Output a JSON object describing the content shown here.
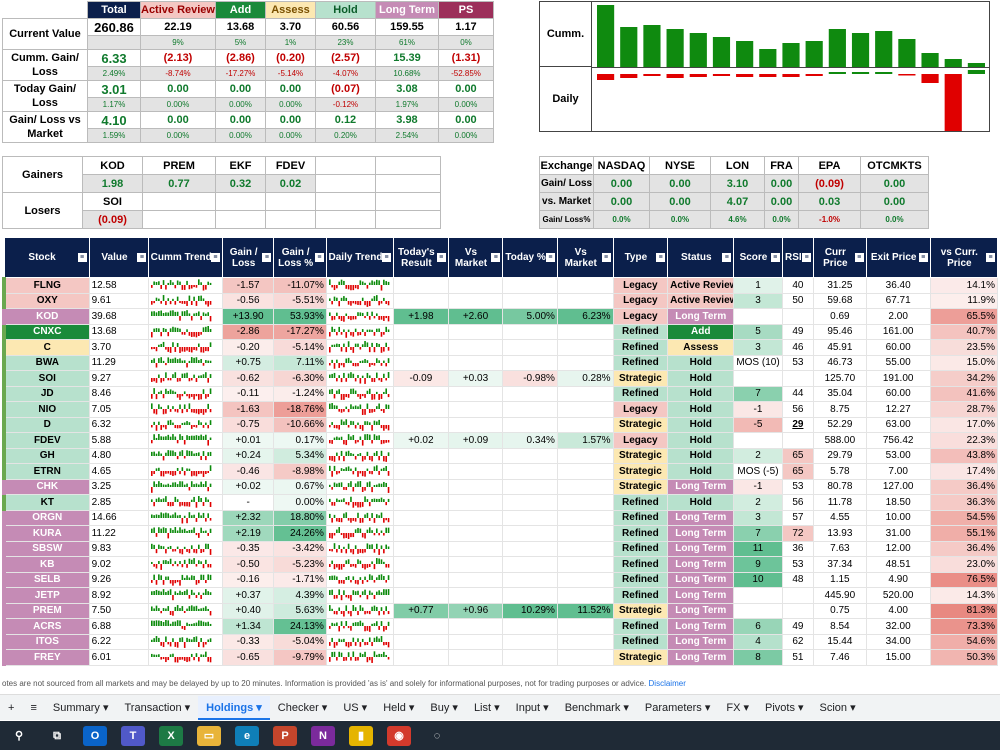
{
  "summary": {
    "headers": [
      {
        "label": "Total",
        "bg": "#0b1f4b",
        "fg": "#ffffff"
      },
      {
        "label": "Active Review",
        "bg": "#f4c7c3",
        "fg": "#990000"
      },
      {
        "label": "Add",
        "bg": "#1a8a3a",
        "fg": "#ffffff"
      },
      {
        "label": "Assess",
        "bg": "#fce8b2",
        "fg": "#7a5000"
      },
      {
        "label": "Hold",
        "bg": "#b7e1cd",
        "fg": "#0b5d2a"
      },
      {
        "label": "Long Term",
        "bg": "#c58bb5",
        "fg": "#ffffff"
      },
      {
        "label": "PS",
        "bg": "#9c2f5a",
        "fg": "#ffffff"
      }
    ],
    "rows": [
      {
        "label": "Current Value",
        "values": [
          "260.86",
          "22.19",
          "13.68",
          "3.70",
          "60.56",
          "159.55",
          "1.17"
        ],
        "pcts": [
          "",
          "9%",
          "5%",
          "1%",
          "23%",
          "61%",
          "0%"
        ],
        "valcls": [
          "",
          "",
          "",
          "",
          "",
          "",
          ""
        ],
        "pctcls": [
          "",
          "g",
          "g",
          "g",
          "g",
          "g",
          "g"
        ]
      },
      {
        "label": "Cumm. Gain/ Loss",
        "values": [
          "6.33",
          "(2.13)",
          "(2.86)",
          "(0.20)",
          "(2.57)",
          "15.39",
          "(1.31)"
        ],
        "pcts": [
          "2.49%",
          "-8.74%",
          "-17.27%",
          "-5.14%",
          "-4.07%",
          "10.68%",
          "-52.85%"
        ],
        "valcls": [
          "g",
          "r",
          "r",
          "r",
          "r",
          "g",
          "r"
        ],
        "pctcls": [
          "g",
          "r",
          "r",
          "r",
          "r",
          "g",
          "r"
        ]
      },
      {
        "label": "Today Gain/ Loss",
        "values": [
          "3.01",
          "0.00",
          "0.00",
          "0.00",
          "(0.07)",
          "3.08",
          "0.00"
        ],
        "pcts": [
          "1.17%",
          "0.00%",
          "0.00%",
          "0.00%",
          "-0.12%",
          "1.97%",
          "0.00%"
        ],
        "valcls": [
          "g",
          "g",
          "g",
          "g",
          "r",
          "g",
          "g"
        ],
        "pctcls": [
          "g",
          "g",
          "g",
          "g",
          "r",
          "g",
          "g"
        ]
      },
      {
        "label": "Gain/ Loss vs Market",
        "values": [
          "4.10",
          "0.00",
          "0.00",
          "0.00",
          "0.12",
          "3.98",
          "0.00"
        ],
        "pcts": [
          "1.59%",
          "0.00%",
          "0.00%",
          "0.00%",
          "0.20%",
          "2.54%",
          "0.00%"
        ],
        "valcls": [
          "g",
          "g",
          "g",
          "g",
          "g",
          "g",
          "g"
        ],
        "pctcls": [
          "g",
          "g",
          "g",
          "g",
          "g",
          "g",
          "g"
        ]
      }
    ]
  },
  "trend_panel": {
    "cumm_label": "Cumm.",
    "daily_label": "Daily",
    "cumm_bars": [
      62,
      40,
      42,
      38,
      34,
      30,
      26,
      18,
      24,
      26,
      38,
      34,
      36,
      28,
      14,
      8,
      4
    ],
    "daily_bars": [
      -6,
      -4,
      -2,
      -4,
      -3,
      -2,
      -3,
      -3,
      -3,
      -2,
      2,
      2,
      2,
      -1,
      -9,
      -58,
      4
    ]
  },
  "gainers_losers": {
    "gainers_label": "Gainers",
    "losers_label": "Losers",
    "gainers": [
      {
        "sym": "KOD",
        "val": "1.98"
      },
      {
        "sym": "PREM",
        "val": "0.77"
      },
      {
        "sym": "EKF",
        "val": "0.32"
      },
      {
        "sym": "FDEV",
        "val": "0.02"
      }
    ],
    "losers": [
      {
        "sym": "SOI",
        "val": "(0.09)"
      }
    ]
  },
  "exchange": {
    "headers": [
      "Exchange",
      "NASDAQ",
      "NYSE",
      "LON",
      "FRA",
      "EPA",
      "OTCMKTS"
    ],
    "rows": [
      {
        "label": "Gain/ Loss",
        "vals": [
          "0.00",
          "0.00",
          "3.10",
          "0.00",
          "(0.09)",
          "0.00"
        ],
        "cls": [
          "g",
          "g",
          "g",
          "g",
          "r",
          "g"
        ]
      },
      {
        "label": "vs. Market",
        "vals": [
          "0.00",
          "0.00",
          "4.07",
          "0.00",
          "0.03",
          "0.00"
        ],
        "cls": [
          "g",
          "g",
          "g",
          "g",
          "g",
          "g"
        ]
      },
      {
        "label": "Gain/ Loss%",
        "vals": [
          "0.0%",
          "0.0%",
          "4.6%",
          "0.0%",
          "-1.0%",
          "0.0%"
        ],
        "cls": [
          "g",
          "g",
          "g",
          "g",
          "r",
          "g"
        ]
      }
    ]
  },
  "holdings": {
    "headers": [
      "Stock",
      "Value",
      "Cumm Trend",
      "Gain / Loss",
      "Gain / Loss %",
      "Daily Trend",
      "Today's Result",
      "Vs Market",
      "Today %",
      "Vs Market",
      "Type",
      "Status",
      "Score",
      "RSI",
      "Curr Price",
      "Exit Price",
      "vs Curr. Price"
    ],
    "rows": [
      {
        "stock": "FLNG",
        "value": "12.58",
        "gl": "-1.57",
        "glp": "-11.07%",
        "tr": "",
        "vm": "",
        "tp": "",
        "vm2": "",
        "type": "Legacy",
        "status": "Active Review",
        "score": "1",
        "rsi": "40",
        "curr": "31.25",
        "exit": "36.40",
        "vsc": "14.1%"
      },
      {
        "stock": "OXY",
        "value": "9.61",
        "gl": "-0.56",
        "glp": "-5.51%",
        "tr": "",
        "vm": "",
        "tp": "",
        "vm2": "",
        "type": "Legacy",
        "status": "Active Review",
        "score": "3",
        "rsi": "50",
        "curr": "59.68",
        "exit": "67.71",
        "vsc": "11.9%"
      },
      {
        "stock": "KOD",
        "value": "39.68",
        "gl": "+13.90",
        "glp": "53.93%",
        "tr": "+1.98",
        "vm": "+2.60",
        "tp": "5.00%",
        "vm2": "6.23%",
        "type": "Legacy",
        "status": "Long Term",
        "score": "",
        "rsi": "",
        "curr": "0.69",
        "exit": "2.00",
        "vsc": "65.5%"
      },
      {
        "stock": "CNXC",
        "value": "13.68",
        "gl": "-2.86",
        "glp": "-17.27%",
        "tr": "",
        "vm": "",
        "tp": "",
        "vm2": "",
        "type": "Refined",
        "status": "Add",
        "score": "5",
        "rsi": "49",
        "curr": "95.46",
        "exit": "161.00",
        "vsc": "40.7%"
      },
      {
        "stock": "C",
        "value": "3.70",
        "gl": "-0.20",
        "glp": "-5.14%",
        "tr": "",
        "vm": "",
        "tp": "",
        "vm2": "",
        "type": "Refined",
        "status": "Assess",
        "score": "3",
        "rsi": "46",
        "curr": "45.91",
        "exit": "60.00",
        "vsc": "23.5%"
      },
      {
        "stock": "BWA",
        "value": "11.29",
        "gl": "+0.75",
        "glp": "7.11%",
        "tr": "",
        "vm": "",
        "tp": "",
        "vm2": "",
        "type": "Refined",
        "status": "Hold",
        "score": "MOS (10)",
        "rsi": "53",
        "curr": "46.73",
        "exit": "55.00",
        "vsc": "15.0%"
      },
      {
        "stock": "SOI",
        "value": "9.27",
        "gl": "-0.62",
        "glp": "-6.30%",
        "tr": "-0.09",
        "vm": "+0.03",
        "tp": "-0.98%",
        "vm2": "0.28%",
        "type": "Strategic",
        "status": "Hold",
        "score": "",
        "rsi": "",
        "curr": "125.70",
        "exit": "191.00",
        "vsc": "34.2%"
      },
      {
        "stock": "JD",
        "value": "8.46",
        "gl": "-0.11",
        "glp": "-1.24%",
        "tr": "",
        "vm": "",
        "tp": "",
        "vm2": "",
        "type": "Refined",
        "status": "Hold",
        "score": "7",
        "rsi": "44",
        "curr": "35.04",
        "exit": "60.00",
        "vsc": "41.6%"
      },
      {
        "stock": "NIO",
        "value": "7.05",
        "gl": "-1.63",
        "glp": "-18.76%",
        "tr": "",
        "vm": "",
        "tp": "",
        "vm2": "",
        "type": "Legacy",
        "status": "Hold",
        "score": "-1",
        "rsi": "56",
        "curr": "8.75",
        "exit": "12.27",
        "vsc": "28.7%"
      },
      {
        "stock": "D",
        "value": "6.32",
        "gl": "-0.75",
        "glp": "-10.66%",
        "tr": "",
        "vm": "",
        "tp": "",
        "vm2": "",
        "type": "Strategic",
        "status": "Hold",
        "score": "-5",
        "rsi": "29",
        "curr": "52.29",
        "exit": "63.00",
        "vsc": "17.0%"
      },
      {
        "stock": "FDEV",
        "value": "5.88",
        "gl": "+0.01",
        "glp": "0.17%",
        "tr": "+0.02",
        "vm": "+0.09",
        "tp": "0.34%",
        "vm2": "1.57%",
        "type": "Legacy",
        "status": "Hold",
        "score": "",
        "rsi": "",
        "curr": "588.00",
        "exit": "756.42",
        "vsc": "22.3%"
      },
      {
        "stock": "GH",
        "value": "4.80",
        "gl": "+0.24",
        "glp": "5.34%",
        "tr": "",
        "vm": "",
        "tp": "",
        "vm2": "",
        "type": "Strategic",
        "status": "Hold",
        "score": "2",
        "rsi": "65",
        "curr": "29.79",
        "exit": "53.00",
        "vsc": "43.8%"
      },
      {
        "stock": "ETRN",
        "value": "4.65",
        "gl": "-0.46",
        "glp": "-8.98%",
        "tr": "",
        "vm": "",
        "tp": "",
        "vm2": "",
        "type": "Strategic",
        "status": "Hold",
        "score": "MOS (-5)",
        "rsi": "65",
        "curr": "5.78",
        "exit": "7.00",
        "vsc": "17.4%"
      },
      {
        "stock": "CHK",
        "value": "3.25",
        "gl": "+0.02",
        "glp": "0.67%",
        "tr": "",
        "vm": "",
        "tp": "",
        "vm2": "",
        "type": "Strategic",
        "status": "Long Term",
        "score": "-1",
        "rsi": "53",
        "curr": "80.78",
        "exit": "127.00",
        "vsc": "36.4%"
      },
      {
        "stock": "KT",
        "value": "2.85",
        "gl": "-",
        "glp": "0.00%",
        "tr": "",
        "vm": "",
        "tp": "",
        "vm2": "",
        "type": "Refined",
        "status": "Hold",
        "score": "2",
        "rsi": "56",
        "curr": "11.78",
        "exit": "18.50",
        "vsc": "36.3%"
      },
      {
        "stock": "ORGN",
        "value": "14.66",
        "gl": "+2.32",
        "glp": "18.80%",
        "tr": "",
        "vm": "",
        "tp": "",
        "vm2": "",
        "type": "Refined",
        "status": "Long Term",
        "score": "3",
        "rsi": "57",
        "curr": "4.55",
        "exit": "10.00",
        "vsc": "54.5%"
      },
      {
        "stock": "KURA",
        "value": "11.22",
        "gl": "+2.19",
        "glp": "24.26%",
        "tr": "",
        "vm": "",
        "tp": "",
        "vm2": "",
        "type": "Refined",
        "status": "Long Term",
        "score": "7",
        "rsi": "72",
        "curr": "13.93",
        "exit": "31.00",
        "vsc": "55.1%"
      },
      {
        "stock": "SBSW",
        "value": "9.83",
        "gl": "-0.35",
        "glp": "-3.42%",
        "tr": "",
        "vm": "",
        "tp": "",
        "vm2": "",
        "type": "Refined",
        "status": "Long Term",
        "score": "11",
        "rsi": "36",
        "curr": "7.63",
        "exit": "12.00",
        "vsc": "36.4%"
      },
      {
        "stock": "KB",
        "value": "9.02",
        "gl": "-0.50",
        "glp": "-5.23%",
        "tr": "",
        "vm": "",
        "tp": "",
        "vm2": "",
        "type": "Refined",
        "status": "Long Term",
        "score": "9",
        "rsi": "53",
        "curr": "37.34",
        "exit": "48.51",
        "vsc": "23.0%"
      },
      {
        "stock": "SELB",
        "value": "9.26",
        "gl": "-0.16",
        "glp": "-1.71%",
        "tr": "",
        "vm": "",
        "tp": "",
        "vm2": "",
        "type": "Refined",
        "status": "Long Term",
        "score": "10",
        "rsi": "48",
        "curr": "1.15",
        "exit": "4.90",
        "vsc": "76.5%"
      },
      {
        "stock": "JETP",
        "value": "8.92",
        "gl": "+0.37",
        "glp": "4.39%",
        "tr": "",
        "vm": "",
        "tp": "",
        "vm2": "",
        "type": "Refined",
        "status": "Long Term",
        "score": "",
        "rsi": "",
        "curr": "445.90",
        "exit": "520.00",
        "vsc": "14.3%"
      },
      {
        "stock": "PREM",
        "value": "7.50",
        "gl": "+0.40",
        "glp": "5.63%",
        "tr": "+0.77",
        "vm": "+0.96",
        "tp": "10.29%",
        "vm2": "11.52%",
        "type": "Strategic",
        "status": "Long Term",
        "score": "",
        "rsi": "",
        "curr": "0.75",
        "exit": "4.00",
        "vsc": "81.3%"
      },
      {
        "stock": "ACRS",
        "value": "6.88",
        "gl": "+1.34",
        "glp": "24.13%",
        "tr": "",
        "vm": "",
        "tp": "",
        "vm2": "",
        "type": "Refined",
        "status": "Long Term",
        "score": "6",
        "rsi": "49",
        "curr": "8.54",
        "exit": "32.00",
        "vsc": "73.3%"
      },
      {
        "stock": "ITOS",
        "value": "6.22",
        "gl": "-0.33",
        "glp": "-5.04%",
        "tr": "",
        "vm": "",
        "tp": "",
        "vm2": "",
        "type": "Refined",
        "status": "Long Term",
        "score": "4",
        "rsi": "62",
        "curr": "15.44",
        "exit": "34.00",
        "vsc": "54.6%"
      },
      {
        "stock": "FREY",
        "value": "6.01",
        "gl": "-0.65",
        "glp": "-9.79%",
        "tr": "",
        "vm": "",
        "tp": "",
        "vm2": "",
        "type": "Strategic",
        "status": "Long Term",
        "score": "8",
        "rsi": "51",
        "curr": "7.46",
        "exit": "15.00",
        "vsc": "50.3%"
      }
    ]
  },
  "footer": {
    "text": "otes are not sourced from all markets and may be delayed by up to 20 minutes. Information is provided 'as is' and solely for informational purposes, not for trading purposes or advice.",
    "link": "Disclaimer"
  },
  "tabs": [
    {
      "label": "+",
      "active": false
    },
    {
      "label": "≡",
      "active": false
    },
    {
      "label": "Summary ▾",
      "active": false
    },
    {
      "label": "Transaction ▾",
      "active": false
    },
    {
      "label": "Holdings ▾",
      "active": true
    },
    {
      "label": "Checker ▾",
      "active": false
    },
    {
      "label": "US ▾",
      "active": false
    },
    {
      "label": "Held ▾",
      "active": false
    },
    {
      "label": "Buy ▾",
      "active": false
    },
    {
      "label": "List ▾",
      "active": false
    },
    {
      "label": "Input ▾",
      "active": false
    },
    {
      "label": "Benchmark ▾",
      "active": false
    },
    {
      "label": "Parameters ▾",
      "active": false
    },
    {
      "label": "FX ▾",
      "active": false
    },
    {
      "label": "Pivots ▾",
      "active": false
    },
    {
      "label": "Scion ▾",
      "active": false
    }
  ],
  "taskbar": [
    {
      "icon": "search-icon",
      "glyph": "⚲",
      "bg": "transparent"
    },
    {
      "icon": "task-view-icon",
      "glyph": "⧉",
      "bg": "transparent"
    },
    {
      "icon": "outlook-icon",
      "glyph": "O",
      "bg": "#0a64c9"
    },
    {
      "icon": "teams-icon",
      "glyph": "T",
      "bg": "#5059c9"
    },
    {
      "icon": "excel-icon",
      "glyph": "X",
      "bg": "#1d7a45"
    },
    {
      "icon": "file-explorer-icon",
      "glyph": "▭",
      "bg": "#e8b43a"
    },
    {
      "icon": "edge-icon",
      "glyph": "e",
      "bg": "#0f7fb8"
    },
    {
      "icon": "powerpoint-icon",
      "glyph": "P",
      "bg": "#c4452c"
    },
    {
      "icon": "onenote-icon",
      "glyph": "N",
      "bg": "#7b2a9c"
    },
    {
      "icon": "power-bi-icon",
      "glyph": "▮",
      "bg": "#e5b400"
    },
    {
      "icon": "chrome-icon",
      "glyph": "◉",
      "bg": "#d33a2c"
    },
    {
      "icon": "app-icon",
      "glyph": "◌",
      "bg": "transparent"
    }
  ],
  "colors": {
    "header": "#0b1f4b",
    "green": "#107a2d",
    "red": "#c00000"
  }
}
